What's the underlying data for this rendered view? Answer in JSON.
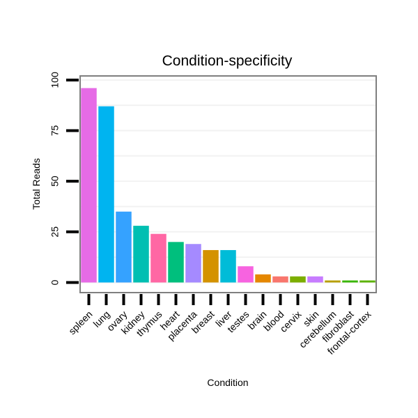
{
  "chart_data": {
    "type": "bar",
    "title": "Condition-specificity",
    "xlabel": "Condition",
    "ylabel": "Total Reads",
    "ylim": [
      -5,
      102
    ],
    "yticks": [
      0,
      25,
      50,
      75,
      100
    ],
    "grid": true,
    "legend": "none",
    "categories": [
      "spleen",
      "lung",
      "ovary",
      "kidney",
      "thymus",
      "heart",
      "placenta",
      "breast",
      "liver",
      "testes",
      "brain",
      "blood",
      "cervix",
      "skin",
      "cerebellum",
      "fibroblast",
      "frontal-cortex"
    ],
    "values": [
      96,
      87,
      35,
      28,
      24,
      20,
      19,
      16,
      16,
      8,
      4,
      3,
      3,
      3,
      1,
      1,
      1
    ],
    "colors": [
      "#E66BE6",
      "#00B4F0",
      "#35A2FF",
      "#00BFB2",
      "#FF67A4",
      "#00BF7D",
      "#A58AFF",
      "#D49200",
      "#00BCD8",
      "#F763E0",
      "#E58700",
      "#F8766D",
      "#7CAE00",
      "#C77CFF",
      "#B79F00",
      "#39B600",
      "#5BB300"
    ]
  }
}
